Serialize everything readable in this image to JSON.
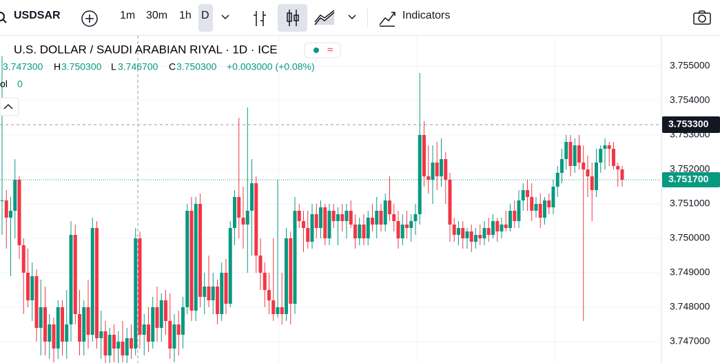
{
  "toolbar": {
    "symbol": "USDSAR",
    "intervals": [
      "1m",
      "30m",
      "1h",
      "D"
    ],
    "indicators": "Indicators"
  },
  "chart_data": {
    "type": "candlestick",
    "title": "U.S. DOLLAR / SAUDI ARABIAN RIYAL · 1D · ICE",
    "legend": {
      "open": "3.747300",
      "high_label": "H",
      "high": "3.750300",
      "low_label": "L",
      "low": "3.746700",
      "close_label": "C",
      "close": "3.750300",
      "change": "+0.003000 (+0.08%)",
      "vol_label": "ol",
      "vol": "0"
    },
    "up_color": "#089981",
    "down_color": "#f23645",
    "ylim": [
      3.74638,
      3.75588
    ],
    "yticks": [
      {
        "value": 3.747,
        "label": "3.747000"
      },
      {
        "value": 3.748,
        "label": "3.748000"
      },
      {
        "value": 3.749,
        "label": "3.749000"
      },
      {
        "value": 3.75,
        "label": "3.750000"
      },
      {
        "value": 3.751,
        "label": "3.751000"
      },
      {
        "value": 3.752,
        "label": "3.752000"
      },
      {
        "value": 3.753,
        "label": "3.753000"
      },
      {
        "value": 3.754,
        "label": "3.754000"
      },
      {
        "value": 3.755,
        "label": "3.755000"
      }
    ],
    "crosshair": {
      "value": 3.7533,
      "label": "3.753300"
    },
    "last_price": {
      "value": 3.7517,
      "label": "3.751700"
    },
    "ohlc": [
      [
        3.7511,
        3.7553,
        3.7501,
        3.7511
      ],
      [
        3.7511,
        3.7514,
        3.7497,
        3.7506
      ],
      [
        3.7506,
        3.7512,
        3.7489,
        3.7508
      ],
      [
        3.7508,
        3.7523,
        3.75,
        3.7517
      ],
      [
        3.7517,
        3.7518,
        3.7494,
        3.7498
      ],
      [
        3.7498,
        3.75,
        3.7478,
        3.749
      ],
      [
        3.749,
        3.7497,
        3.748,
        3.7482
      ],
      [
        3.7482,
        3.7493,
        3.7476,
        3.7489
      ],
      [
        3.7489,
        3.7491,
        3.747,
        3.7474
      ],
      [
        3.7474,
        3.7488,
        3.7466,
        3.748
      ],
      [
        3.748,
        3.7486,
        3.7466,
        3.747
      ],
      [
        3.747,
        3.7478,
        3.7465,
        3.7475
      ],
      [
        3.7475,
        3.7477,
        3.7464,
        3.7468
      ],
      [
        3.7468,
        3.7482,
        3.7465,
        3.748
      ],
      [
        3.748,
        3.7482,
        3.7466,
        3.747
      ],
      [
        3.747,
        3.7485,
        3.7465,
        3.7475
      ],
      [
        3.7475,
        3.7505,
        3.747,
        3.7501
      ],
      [
        3.7501,
        3.7504,
        3.7475,
        3.7478
      ],
      [
        3.7478,
        3.7485,
        3.7466,
        3.747
      ],
      [
        3.747,
        3.7482,
        3.7466,
        3.748
      ],
      [
        3.748,
        3.7488,
        3.7468,
        3.7472
      ],
      [
        3.7472,
        3.7506,
        3.747,
        3.7503
      ],
      [
        3.7503,
        3.7505,
        3.7468,
        3.7471
      ],
      [
        3.7471,
        3.7479,
        3.7465,
        3.7473
      ],
      [
        3.7473,
        3.7476,
        3.7463,
        3.7466
      ],
      [
        3.7466,
        3.7474,
        3.7463,
        3.7472
      ],
      [
        3.7472,
        3.7475,
        3.7464,
        3.7468
      ],
      [
        3.7468,
        3.7473,
        3.7462,
        3.747
      ],
      [
        3.747,
        3.7476,
        3.7464,
        3.7466
      ],
      [
        3.7466,
        3.7474,
        3.7463,
        3.7471
      ],
      [
        3.7471,
        3.7475,
        3.7465,
        3.7468
      ],
      [
        3.7468,
        3.7503,
        3.7466,
        3.75
      ],
      [
        3.75,
        3.7502,
        3.7468,
        3.7472
      ],
      [
        3.7472,
        3.7478,
        3.7466,
        3.7475
      ],
      [
        3.7475,
        3.748,
        3.7467,
        3.747
      ],
      [
        3.747,
        3.7483,
        3.7468,
        3.748
      ],
      [
        3.748,
        3.7486,
        3.747,
        3.7474
      ],
      [
        3.7474,
        3.7484,
        3.747,
        3.7482
      ],
      [
        3.7482,
        3.7485,
        3.7472,
        3.7476
      ],
      [
        3.7476,
        3.7484,
        3.7465,
        3.7468
      ],
      [
        3.7468,
        3.7478,
        3.7464,
        3.7475
      ],
      [
        3.7475,
        3.7479,
        3.7466,
        3.7472
      ],
      [
        3.7472,
        3.7483,
        3.7468,
        3.748
      ],
      [
        3.748,
        3.751,
        3.7478,
        3.7508
      ],
      [
        3.7508,
        3.7512,
        3.7476,
        3.7479
      ],
      [
        3.7479,
        3.7512,
        3.7476,
        3.751
      ],
      [
        3.751,
        3.7513,
        3.748,
        3.7483
      ],
      [
        3.7483,
        3.749,
        3.7478,
        3.7486
      ],
      [
        3.7486,
        3.7495,
        3.748,
        3.7482
      ],
      [
        3.7482,
        3.749,
        3.7478,
        3.7486
      ],
      [
        3.7486,
        3.7488,
        3.7475,
        3.7478
      ],
      [
        3.7478,
        3.7493,
        3.7476,
        3.749
      ],
      [
        3.749,
        3.7494,
        3.7478,
        3.7481
      ],
      [
        3.7481,
        3.7505,
        3.748,
        3.7503
      ],
      [
        3.7503,
        3.7514,
        3.7498,
        3.7512
      ],
      [
        3.7512,
        3.7535,
        3.75,
        3.7506
      ],
      [
        3.7506,
        3.7515,
        3.7497,
        3.7504
      ],
      [
        3.7504,
        3.7538,
        3.749,
        3.7508
      ],
      [
        3.7508,
        3.7523,
        3.7495,
        3.7516
      ],
      [
        3.7516,
        3.7518,
        3.749,
        3.7495
      ],
      [
        3.7495,
        3.75,
        3.7485,
        3.749
      ],
      [
        3.749,
        3.7493,
        3.748,
        3.7485
      ],
      [
        3.7485,
        3.749,
        3.7478,
        3.7482
      ],
      [
        3.7482,
        3.75,
        3.7476,
        3.7478
      ],
      [
        3.7478,
        3.7517,
        3.7477,
        3.748
      ],
      [
        3.748,
        3.749,
        3.7475,
        3.7478
      ],
      [
        3.7478,
        3.7503,
        3.7476,
        3.75
      ],
      [
        3.75,
        3.7502,
        3.7475,
        3.7481
      ],
      [
        3.7481,
        3.7512,
        3.7478,
        3.7508
      ],
      [
        3.7508,
        3.751,
        3.7503,
        3.7505
      ],
      [
        3.7505,
        3.7508,
        3.7496,
        3.7503
      ],
      [
        3.7503,
        3.7508,
        3.7497,
        3.7499
      ],
      [
        3.7499,
        3.751,
        3.7497,
        3.7507
      ],
      [
        3.7507,
        3.751,
        3.75,
        3.7503
      ],
      [
        3.7503,
        3.7511,
        3.75,
        3.7509
      ],
      [
        3.7509,
        3.751,
        3.7498,
        3.75
      ],
      [
        3.75,
        3.751,
        3.7498,
        3.7508
      ],
      [
        3.7508,
        3.751,
        3.7503,
        3.7505
      ],
      [
        3.7505,
        3.7509,
        3.7498,
        3.7507
      ],
      [
        3.7507,
        3.751,
        3.7502,
        3.7505
      ],
      [
        3.7505,
        3.751,
        3.75,
        3.7508
      ],
      [
        3.7508,
        3.7511,
        3.7503,
        3.7504
      ],
      [
        3.7504,
        3.7507,
        3.7497,
        3.75
      ],
      [
        3.75,
        3.7506,
        3.7498,
        3.7504
      ],
      [
        3.7504,
        3.7507,
        3.7498,
        3.75
      ],
      [
        3.75,
        3.7508,
        3.7498,
        3.7506
      ],
      [
        3.7506,
        3.751,
        3.7502,
        3.7504
      ],
      [
        3.7504,
        3.7512,
        3.75,
        3.7508
      ],
      [
        3.7508,
        3.751,
        3.7502,
        3.7504
      ],
      [
        3.7504,
        3.7513,
        3.7502,
        3.7511
      ],
      [
        3.7511,
        3.7518,
        3.7505,
        3.7507
      ],
      [
        3.7507,
        3.751,
        3.7502,
        3.7505
      ],
      [
        3.7505,
        3.7508,
        3.7497,
        3.75
      ],
      [
        3.75,
        3.7507,
        3.7498,
        3.7504
      ],
      [
        3.7504,
        3.7508,
        3.75,
        3.7503
      ],
      [
        3.7503,
        3.7507,
        3.7499,
        3.7505
      ],
      [
        3.7505,
        3.751,
        3.7501,
        3.7507
      ],
      [
        3.7507,
        3.7548,
        3.7504,
        3.753
      ],
      [
        3.753,
        3.7534,
        3.7515,
        3.7518
      ],
      [
        3.7518,
        3.7527,
        3.7513,
        3.7517
      ],
      [
        3.7517,
        3.7527,
        3.751,
        3.7522
      ],
      [
        3.7522,
        3.7528,
        3.7514,
        3.7518
      ],
      [
        3.7518,
        3.7529,
        3.7515,
        3.7523
      ],
      [
        3.7523,
        3.7525,
        3.751,
        3.7517
      ],
      [
        3.7517,
        3.7519,
        3.7499,
        3.7504
      ],
      [
        3.7504,
        3.7506,
        3.7499,
        3.7501
      ],
      [
        3.7501,
        3.7505,
        3.7498,
        3.7503
      ],
      [
        3.7503,
        3.7505,
        3.7497,
        3.75
      ],
      [
        3.75,
        3.7503,
        3.7497,
        3.7502
      ],
      [
        3.7502,
        3.7504,
        3.7496,
        3.7499
      ],
      [
        3.7499,
        3.7503,
        3.7497,
        3.7501
      ],
      [
        3.7501,
        3.7504,
        3.7498,
        3.75
      ],
      [
        3.75,
        3.7505,
        3.7498,
        3.7503
      ],
      [
        3.7503,
        3.7506,
        3.7499,
        3.7501
      ],
      [
        3.7501,
        3.7507,
        3.75,
        3.7505
      ],
      [
        3.7505,
        3.7506,
        3.7499,
        3.7502
      ],
      [
        3.7502,
        3.7506,
        3.75,
        3.7504
      ],
      [
        3.7504,
        3.7508,
        3.7502,
        3.7503
      ],
      [
        3.7503,
        3.751,
        3.7502,
        3.7508
      ],
      [
        3.7508,
        3.7511,
        3.7503,
        3.7505
      ],
      [
        3.7505,
        3.7514,
        3.7503,
        3.7511
      ],
      [
        3.7511,
        3.7516,
        3.7508,
        3.7514
      ],
      [
        3.7514,
        3.7517,
        3.7508,
        3.7512
      ],
      [
        3.7512,
        3.7516,
        3.7505,
        3.7508
      ],
      [
        3.7508,
        3.7512,
        3.7506,
        3.751
      ],
      [
        3.751,
        3.7513,
        3.7503,
        3.7506
      ],
      [
        3.7506,
        3.7512,
        3.7504,
        3.7511
      ],
      [
        3.7511,
        3.7513,
        3.7507,
        3.7509
      ],
      [
        3.7509,
        3.7517,
        3.7507,
        3.7515
      ],
      [
        3.7515,
        3.7521,
        3.7512,
        3.7519
      ],
      [
        3.7519,
        3.7526,
        3.7516,
        3.7523
      ],
      [
        3.7523,
        3.753,
        3.752,
        3.7528
      ],
      [
        3.7528,
        3.753,
        3.7518,
        3.7521
      ],
      [
        3.7521,
        3.7529,
        3.7519,
        3.7527
      ],
      [
        3.7527,
        3.753,
        3.752,
        3.7522
      ],
      [
        3.7522,
        3.7527,
        3.7476,
        3.752
      ],
      [
        3.752,
        3.7524,
        3.7512,
        3.7518
      ],
      [
        3.7518,
        3.7522,
        3.7505,
        3.7514
      ],
      [
        3.7514,
        3.7526,
        3.7512,
        3.7522
      ],
      [
        3.7522,
        3.7527,
        3.7519,
        3.7526
      ],
      [
        3.7526,
        3.7529,
        3.752,
        3.7527
      ],
      [
        3.7527,
        3.7528,
        3.7521,
        3.7526
      ],
      [
        3.7526,
        3.7528,
        3.752,
        3.7521
      ],
      [
        3.7521,
        3.7522,
        3.7515,
        3.752
      ],
      [
        3.752,
        3.7521,
        3.7515,
        3.7517
      ]
    ]
  }
}
